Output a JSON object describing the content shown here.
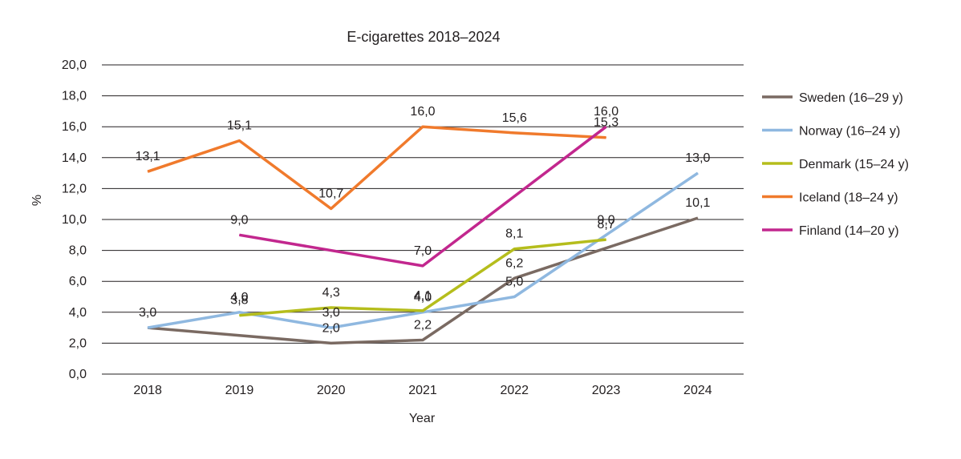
{
  "chart_data": {
    "type": "line",
    "title": "E-cigarettes 2018–2024",
    "xlabel": "Year",
    "ylabel": "%",
    "categories": [
      "2018",
      "2019",
      "2020",
      "2021",
      "2022",
      "2023",
      "2024"
    ],
    "ylim": [
      0,
      20
    ],
    "yticks": [
      "0,0",
      "2,0",
      "4,0",
      "6,0",
      "8,0",
      "10,0",
      "12,0",
      "14,0",
      "16,0",
      "18,0",
      "20,0"
    ],
    "grid": true,
    "legend_position": "right",
    "series": [
      {
        "name": "Sweden (16–29 y)",
        "color": "#7a6a62",
        "values": [
          3.0,
          null,
          2.0,
          2.2,
          6.2,
          null,
          10.1
        ],
        "labels": [
          "3,0",
          null,
          "2,0",
          "2,2",
          "6,2",
          null,
          "10,1"
        ]
      },
      {
        "name": "Norway (16–24 y)",
        "color": "#8fb8e0",
        "values": [
          3.0,
          4.0,
          3.0,
          4.0,
          5.0,
          9.0,
          13.0
        ],
        "labels": [
          null,
          "4,0",
          "3,0",
          "4,0",
          "5,0",
          "9,0",
          "13,0"
        ]
      },
      {
        "name": "Denmark (15–24 y)",
        "color": "#b5bd1c",
        "values": [
          null,
          3.8,
          4.3,
          4.1,
          8.1,
          8.7,
          null
        ],
        "labels": [
          null,
          "3,8",
          "4,3",
          "4,1",
          "8,1",
          "8,7",
          null
        ]
      },
      {
        "name": "Iceland (18–24 y)",
        "color": "#f07a2c",
        "values": [
          13.1,
          15.1,
          10.7,
          16.0,
          15.6,
          15.3,
          null
        ],
        "labels": [
          "13,1",
          "15,1",
          "10,7",
          "16,0",
          "15,6",
          "15,3",
          null
        ]
      },
      {
        "name": "Finland (14–20 y)",
        "color": "#c2278e",
        "values": [
          null,
          9.0,
          null,
          7.0,
          null,
          16.0,
          null
        ],
        "labels": [
          null,
          "9,0",
          null,
          "7,0",
          null,
          "16,0",
          null
        ]
      }
    ]
  }
}
